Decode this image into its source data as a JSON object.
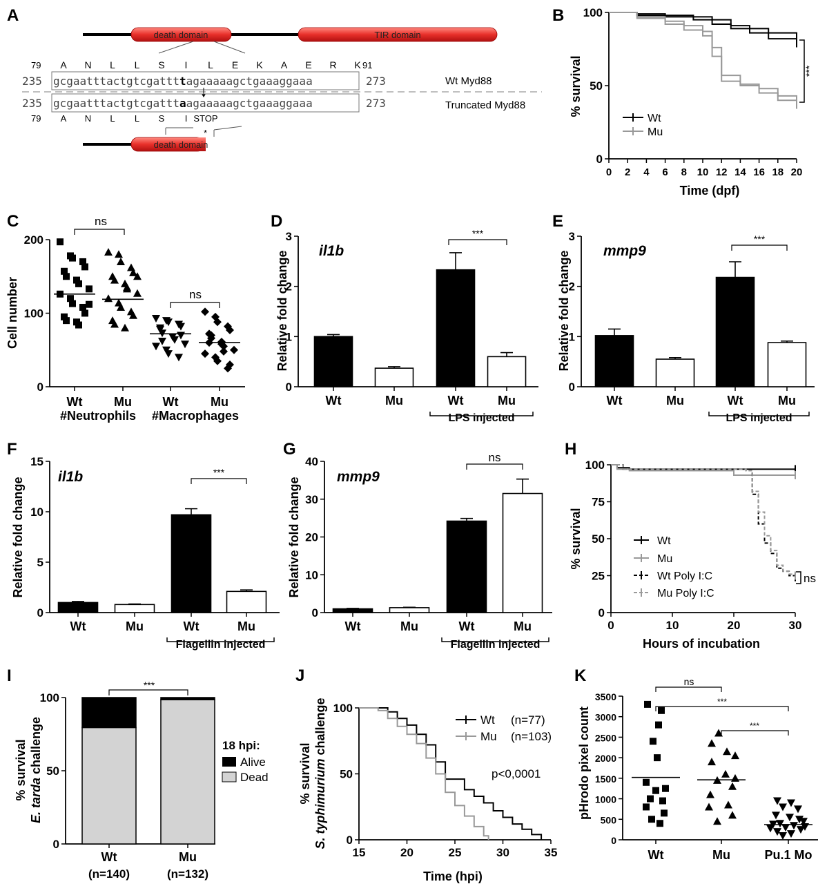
{
  "panels": {
    "A": "A",
    "B": "B",
    "C": "C",
    "D": "D",
    "E": "E",
    "F": "F",
    "G": "G",
    "H": "H",
    "I": "I",
    "J": "J",
    "K": "K"
  },
  "sig": {
    "three": "***",
    "ns": "ns"
  },
  "panelA": {
    "death_domain": "death domain",
    "tir_domain": "TIR domain",
    "aa_start": "79",
    "aa_end": "91",
    "wt_aa": [
      "A",
      "N",
      "L",
      "L",
      "S",
      "I",
      "L",
      "E",
      "K",
      "A",
      "E",
      "R",
      "K"
    ],
    "mu_aa": [
      "A",
      "N",
      "L",
      "L",
      "S",
      "I",
      "STOP"
    ],
    "nt_start": "235",
    "nt_end": "273",
    "wt_seq_a": "gcgaatttactgtcgattt",
    "wt_seq_mut": "t",
    "wt_seq_b": "agaaaaagctgaaaggaaa",
    "mu_seq_a": "gcgaatttactgtcgattt",
    "mu_seq_mut": "a",
    "mu_seq_b": "agaaaaagctgaaaggaaa",
    "wt_label": "Wt Myd88",
    "mu_label": "Truncated Myd88",
    "asterisk": "*"
  },
  "panelB": {
    "ylabel": "% survival",
    "xlabel": "Time (dpf)",
    "yticks": [
      "0",
      "50",
      "100"
    ],
    "xticks": [
      "0",
      "2",
      "4",
      "6",
      "8",
      "10",
      "12",
      "14",
      "16",
      "18",
      "20"
    ],
    "legend": [
      "Wt",
      "Mu"
    ]
  },
  "panelC": {
    "ylabel": "Cell number",
    "yticks": [
      "0",
      "100",
      "200"
    ],
    "xcats": [
      "Wt",
      "Mu",
      "Wt",
      "Mu"
    ],
    "groups": [
      "#Neutrophils",
      "#Macrophages"
    ]
  },
  "panelD": {
    "gene": "il1b",
    "ylabel": "Relative fold change",
    "yticks": [
      "0",
      "1",
      "2",
      "3"
    ],
    "xcats": [
      "Wt",
      "Mu",
      "Wt",
      "Mu"
    ],
    "group": "LPS injected"
  },
  "panelE": {
    "gene": "mmp9",
    "ylabel": "Relative fold change",
    "yticks": [
      "0",
      "1",
      "2",
      "3"
    ],
    "xcats": [
      "Wt",
      "Mu",
      "Wt",
      "Mu"
    ],
    "group": "LPS injected"
  },
  "panelF": {
    "gene": "il1b",
    "ylabel": "Relative fold change",
    "yticks": [
      "0",
      "5",
      "10",
      "15"
    ],
    "xcats": [
      "Wt",
      "Mu",
      "Wt",
      "Mu"
    ],
    "group": "Flagellin injected"
  },
  "panelG": {
    "gene": "mmp9",
    "ylabel": "Relative fold change",
    "yticks": [
      "0",
      "10",
      "20",
      "30",
      "40"
    ],
    "xcats": [
      "Wt",
      "Mu",
      "Wt",
      "Mu"
    ],
    "group": "Flagellin injected"
  },
  "panelH": {
    "ylabel": "% survival",
    "xlabel": "Hours of incubation",
    "yticks": [
      "0",
      "25",
      "50",
      "75",
      "100"
    ],
    "xticks": [
      "0",
      "10",
      "20",
      "30"
    ],
    "legend": [
      "Wt",
      "Mu",
      "Wt Poly I:C",
      "Mu Poly I:C"
    ]
  },
  "panelI": {
    "ylabel1": "% survival",
    "ylabel_italic": "E. tarda",
    "ylabel2": " challenge",
    "yticks": [
      "0",
      "50",
      "100"
    ],
    "xcats": [
      "Wt",
      "Mu"
    ],
    "ns": [
      "(n=140)",
      "(n=132)"
    ],
    "legend_title": "18 hpi:",
    "legend": [
      "Alive",
      "Dead"
    ]
  },
  "panelJ": {
    "ylabel1": "% survival",
    "ylabel_italic": "S. typhimurium",
    "ylabel2": " challenge",
    "xlabel": "Time (hpi)",
    "yticks": [
      "0",
      "50",
      "100"
    ],
    "xticks": [
      "15",
      "20",
      "25",
      "30",
      "35"
    ],
    "legend": [
      "Wt",
      "Mu"
    ],
    "legend_n": [
      "(n=77)",
      "(n=103)"
    ],
    "pvalue": "p<0,0001"
  },
  "panelK": {
    "ylabel": "pHrodo pixel count",
    "yticks": [
      "0",
      "500",
      "1000",
      "1500",
      "2000",
      "2500",
      "3000",
      "3500"
    ],
    "xcats": [
      "Wt",
      "Mu",
      "Pu.1 Mo"
    ]
  },
  "colors": {
    "black": "#000000",
    "gray": "#999999",
    "lightgray": "#d3d3d3",
    "red": "#e8302a"
  },
  "chart_data": [
    {
      "type": "line",
      "panel": "B",
      "series": [
        {
          "name": "Wt",
          "x": [
            0,
            3,
            6,
            9,
            11,
            13,
            15,
            17,
            20
          ],
          "y": [
            100,
            99,
            98,
            97,
            95,
            91,
            89,
            86,
            83
          ]
        },
        {
          "name": "Wt",
          "x": [
            0,
            3,
            6,
            9,
            11,
            13,
            15,
            17,
            20
          ],
          "y": [
            100,
            98,
            97,
            95,
            92,
            89,
            86,
            82,
            79
          ]
        },
        {
          "name": "Mu",
          "x": [
            0,
            3,
            6,
            8,
            10,
            11,
            12,
            14,
            16,
            18,
            20
          ],
          "y": [
            100,
            97,
            94,
            91,
            87,
            76,
            57,
            51,
            48,
            43,
            40
          ]
        },
        {
          "name": "Mu",
          "x": [
            0,
            3,
            6,
            8,
            10,
            11,
            12,
            14,
            16,
            18,
            20
          ],
          "y": [
            100,
            96,
            92,
            88,
            84,
            70,
            53,
            50,
            45,
            40,
            37
          ]
        }
      ],
      "xlim": [
        0,
        20
      ],
      "ylim": [
        0,
        100
      ]
    },
    {
      "type": "scatter",
      "panel": "C",
      "categories": [
        "Wt #Neutrophils",
        "Mu #Neutrophils",
        "Wt #Macrophages",
        "Mu #Macrophages"
      ],
      "means": [
        126,
        119,
        72,
        60
      ],
      "ylim": [
        0,
        200
      ]
    },
    {
      "type": "bar",
      "panel": "D",
      "categories": [
        "Wt",
        "Mu",
        "Wt LPS",
        "Mu LPS"
      ],
      "values": [
        1.0,
        0.37,
        2.33,
        0.6
      ],
      "errors": [
        0.04,
        0.03,
        0.34,
        0.08
      ],
      "ylim": [
        0,
        3
      ]
    },
    {
      "type": "bar",
      "panel": "E",
      "categories": [
        "Wt",
        "Mu",
        "Wt LPS",
        "Mu LPS"
      ],
      "values": [
        1.02,
        0.55,
        2.18,
        0.88
      ],
      "errors": [
        0.13,
        0.03,
        0.31,
        0.03
      ],
      "ylim": [
        0,
        3
      ]
    },
    {
      "type": "bar",
      "panel": "F",
      "categories": [
        "Wt",
        "Mu",
        "Wt Flagellin",
        "Mu Flagellin"
      ],
      "values": [
        1.0,
        0.8,
        9.7,
        2.1
      ],
      "errors": [
        0.1,
        0.05,
        0.6,
        0.15
      ],
      "ylim": [
        0,
        15
      ]
    },
    {
      "type": "bar",
      "panel": "G",
      "categories": [
        "Wt",
        "Mu",
        "Wt Flagellin",
        "Mu Flagellin"
      ],
      "values": [
        1.0,
        1.3,
        24.2,
        31.5
      ],
      "errors": [
        0.1,
        0.1,
        0.7,
        3.8
      ],
      "ylim": [
        0,
        40
      ]
    },
    {
      "type": "line",
      "panel": "H",
      "series": [
        {
          "name": "Wt",
          "x": [
            0,
            1,
            3,
            30
          ],
          "y": [
            100,
            98,
            97,
            97
          ]
        },
        {
          "name": "Mu",
          "x": [
            0,
            1,
            3,
            20,
            30
          ],
          "y": [
            100,
            97,
            96,
            93,
            93
          ]
        },
        {
          "name": "Wt Poly I:C",
          "x": [
            0,
            2,
            22,
            23,
            24,
            25,
            26,
            27,
            28,
            29,
            30
          ],
          "y": [
            100,
            97,
            96,
            80,
            60,
            47,
            40,
            30,
            28,
            25,
            24
          ]
        },
        {
          "name": "Mu Poly I:C",
          "x": [
            0,
            2,
            22,
            23,
            24,
            25,
            26,
            27,
            28,
            29,
            30
          ],
          "y": [
            100,
            97,
            96,
            82,
            68,
            52,
            42,
            32,
            28,
            26,
            25
          ]
        }
      ],
      "xlim": [
        0,
        30
      ],
      "ylim": [
        0,
        100
      ]
    },
    {
      "type": "bar",
      "panel": "I",
      "categories": [
        "Wt",
        "Mu"
      ],
      "series": [
        {
          "name": "Dead",
          "values": [
            79.5,
            98.5
          ]
        },
        {
          "name": "Alive",
          "values": [
            20.5,
            1.5
          ]
        }
      ],
      "ylim": [
        0,
        100
      ]
    },
    {
      "type": "line",
      "panel": "J",
      "series": [
        {
          "name": "Wt",
          "x": [
            15,
            17,
            18,
            19,
            20,
            21,
            22,
            23,
            24,
            26,
            27,
            28,
            29,
            30,
            31,
            32,
            33,
            34
          ],
          "y": [
            100,
            100,
            97,
            92,
            87,
            80,
            72,
            59,
            46,
            38,
            33,
            28,
            22,
            17,
            12,
            8,
            4,
            0
          ]
        },
        {
          "name": "Mu",
          "x": [
            15,
            17,
            18,
            19,
            20,
            21,
            22,
            23,
            24,
            25,
            26,
            27,
            28,
            28.5
          ],
          "y": [
            100,
            98,
            92,
            86,
            80,
            73,
            62,
            50,
            36,
            26,
            18,
            10,
            3,
            0
          ]
        }
      ],
      "xlim": [
        15,
        35
      ],
      "ylim": [
        0,
        100
      ]
    },
    {
      "type": "scatter",
      "panel": "K",
      "categories": [
        "Wt",
        "Mu",
        "Pu.1 Mo"
      ],
      "means": [
        1520,
        1460,
        370
      ],
      "ylim": [
        0,
        3500
      ]
    }
  ]
}
